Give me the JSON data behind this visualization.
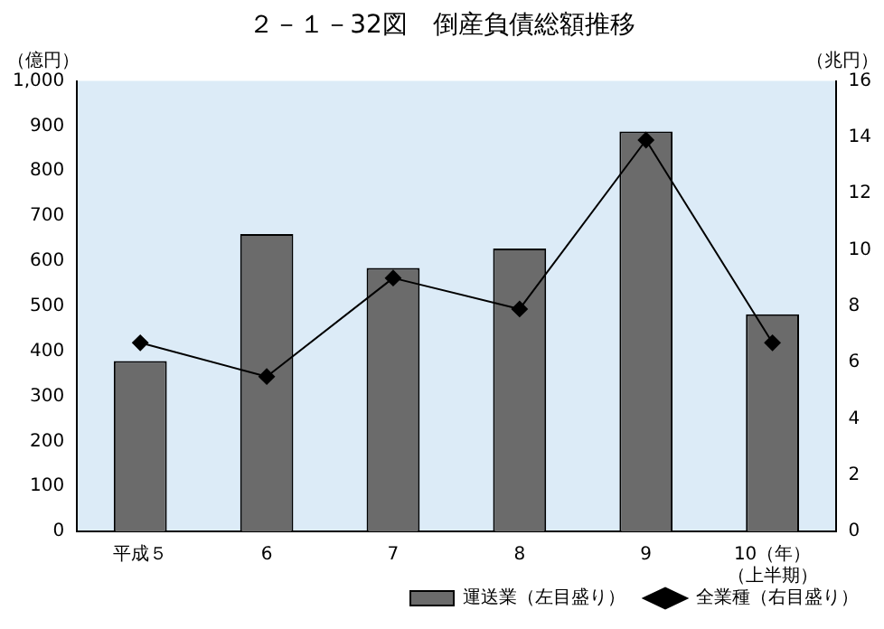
{
  "chart_data": {
    "type": "bar",
    "title": "２－１－32図　倒産負債総額推移",
    "ylabel": "（億円）",
    "y2label": "（兆円）",
    "categories": [
      "平成５",
      "6",
      "7",
      "8",
      "9",
      "10（年）"
    ],
    "annotations": [
      "（上半期）"
    ],
    "series": [
      {
        "name": "運送業（左目盛り）",
        "color": "#6b6b6b",
        "values": [
          378,
          660,
          585,
          628,
          888,
          482
        ]
      },
      {
        "name": "全業種（右目盛り）",
        "type": "line",
        "axis": "y2",
        "color": "#000000",
        "marker": "diamond",
        "values": [
          6.7,
          5.5,
          9.0,
          7.9,
          13.9,
          6.7
        ]
      }
    ],
    "ylim": [
      0,
      1000
    ],
    "yticks": [
      0,
      {
        "value": 100,
        "label": "100"
      },
      200,
      300,
      400,
      500,
      600,
      700,
      800,
      900,
      {
        "value": 1000,
        "label": "1,000"
      }
    ],
    "y2lim": [
      0,
      16
    ],
    "y2ticks": [
      0,
      2,
      4,
      6,
      8,
      10,
      12,
      14,
      16
    ],
    "grid": false,
    "legend": "bottom right"
  }
}
